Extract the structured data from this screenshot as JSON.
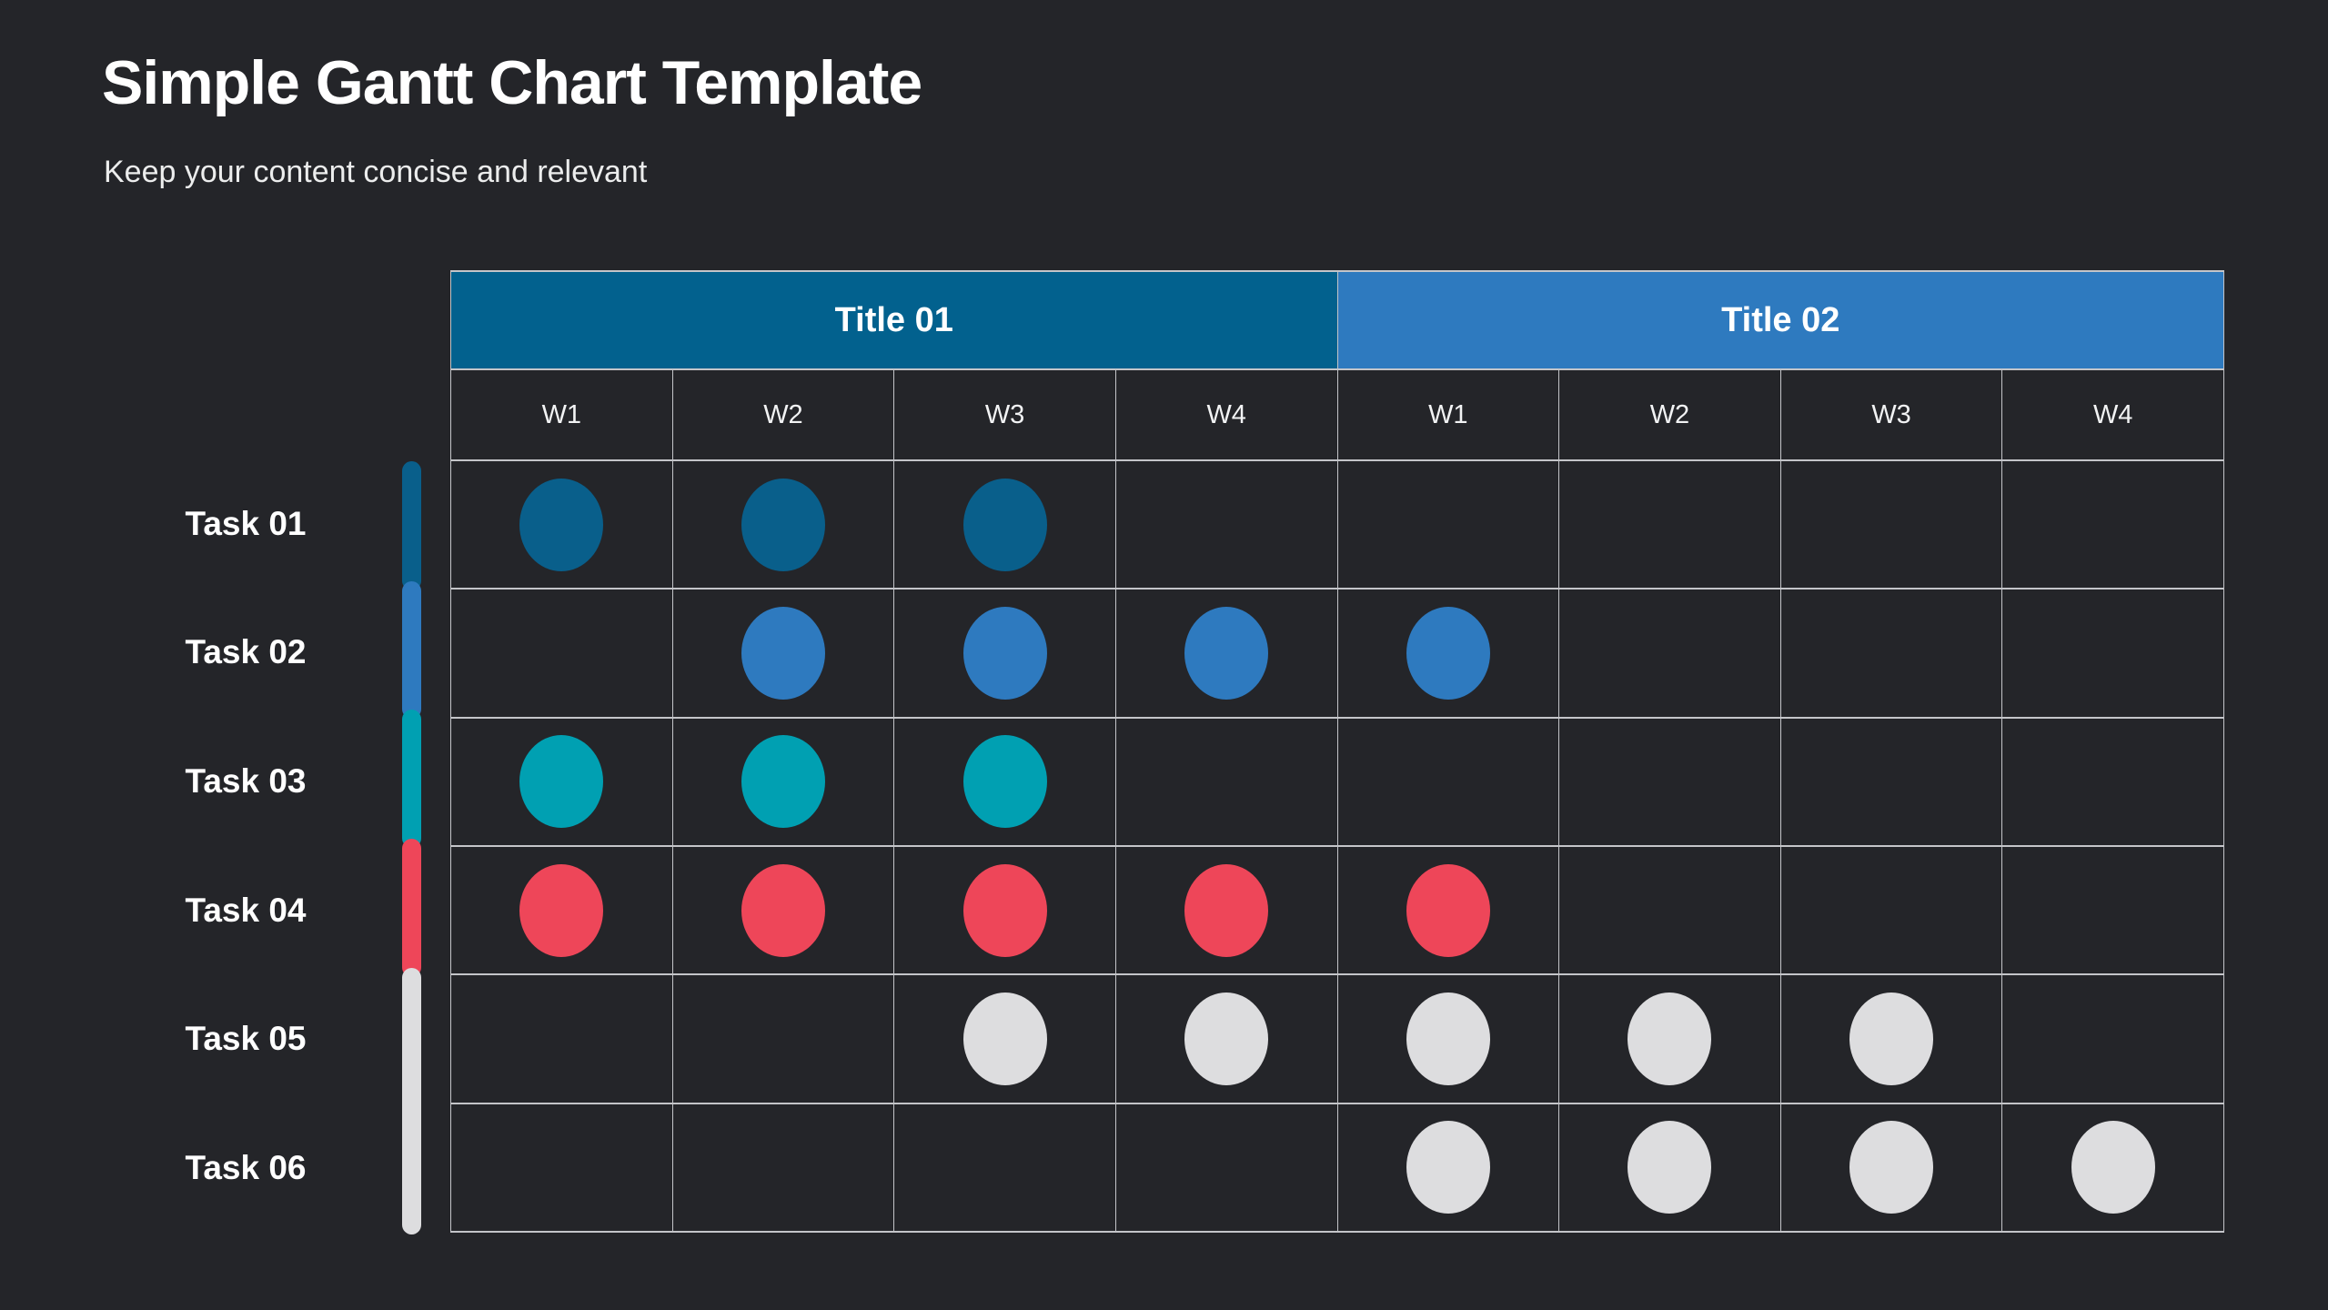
{
  "page": {
    "background": "#242529",
    "title": "Simple Gantt Chart Template",
    "subtitle": "Keep your content concise and relevant"
  },
  "chart_data": {
    "type": "table",
    "title": "Simple Gantt Chart Template",
    "subtitle": "Keep your content concise and relevant",
    "column_groups": [
      {
        "label": "Title 01",
        "color": "#02618e",
        "weeks": [
          "W1",
          "W2",
          "W3",
          "W4"
        ]
      },
      {
        "label": "Title 02",
        "color": "#2e7abf",
        "weeks": [
          "W1",
          "W2",
          "W3",
          "W4"
        ]
      }
    ],
    "rows": [
      {
        "label": "Task 01",
        "color": "#095f8b",
        "cells": [
          1,
          1,
          1,
          0,
          0,
          0,
          0,
          0
        ]
      },
      {
        "label": "Task 02",
        "color": "#2e7abf",
        "cells": [
          0,
          1,
          1,
          1,
          1,
          0,
          0,
          0
        ]
      },
      {
        "label": "Task 03",
        "color": "#00a0b2",
        "cells": [
          1,
          1,
          1,
          0,
          0,
          0,
          0,
          0
        ]
      },
      {
        "label": "Task 04",
        "color": "#ee4659",
        "cells": [
          1,
          1,
          1,
          1,
          1,
          0,
          0,
          0
        ]
      },
      {
        "label": "Task 05",
        "color": "#dddddf",
        "cells": [
          0,
          0,
          1,
          1,
          1,
          1,
          1,
          0
        ]
      },
      {
        "label": "Task 06",
        "color": "#dddddf",
        "cells": [
          0,
          0,
          0,
          0,
          1,
          1,
          1,
          1
        ]
      }
    ],
    "legend_strip": [
      {
        "color": "#095f8b",
        "rows": 1
      },
      {
        "color": "#2e7abf",
        "rows": 1
      },
      {
        "color": "#00a0b2",
        "rows": 1
      },
      {
        "color": "#ee4659",
        "rows": 1
      },
      {
        "color": "#dddddf",
        "rows": 2
      }
    ],
    "layout_hints": {
      "grid": "on",
      "grid_line_color": "#c4c5c9",
      "background": "#242529",
      "week_columns_per_group": 4,
      "task_row_count": 6
    }
  }
}
